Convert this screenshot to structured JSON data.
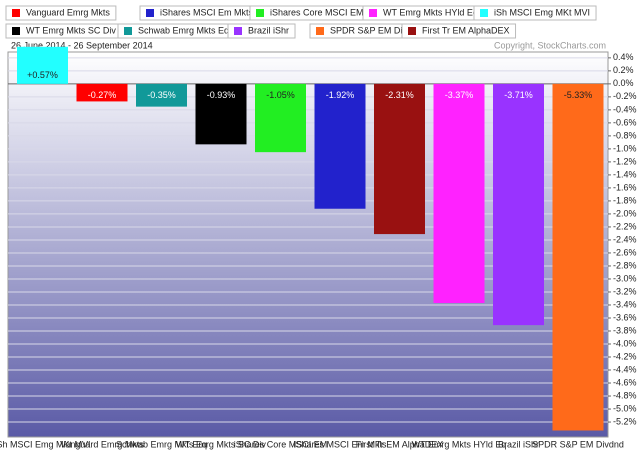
{
  "chart_data": {
    "type": "bar",
    "subtitle": "26 June 2014 - 26 September 2014",
    "annotation": "Copyright, StockCharts.com",
    "legend": [
      {
        "name": "Vanguard Emrg Mkts",
        "color": "#ff0000"
      },
      {
        "name": "iShares MSCI Em Mkts",
        "color": "#2222cc"
      },
      {
        "name": "iShares Core MSCI EM",
        "color": "#22ee22"
      },
      {
        "name": "WT Emrg Mkts HYld Eq",
        "color": "#ff22ff"
      },
      {
        "name": "iSh MSCI Emg MKt MVI",
        "color": "#22ffff"
      },
      {
        "name": "WT Emrg Mkts SC Div",
        "color": "#000000"
      },
      {
        "name": "Schwab Emrg Mkts Eq",
        "color": "#119999"
      },
      {
        "name": "Brazil iShr",
        "color": "#9933ff"
      },
      {
        "name": "SPDR S&P EM Divdnd",
        "color": "#ff6a1a"
      },
      {
        "name": "First Tr EM AlphaDEX",
        "color": "#991111"
      }
    ],
    "categories": [
      "iSh MSCI Emg MKt MVI",
      "Vanguard Emrg Mkts",
      "Schwab Emrg Mkts Eq",
      "WT Emrg Mkts SC Div",
      "iShares Core MSCI EM",
      "iShares MSCI Em Mkts",
      "First Tr EM AlphaDEX",
      "WT Emrg Mkts HYld Eq",
      "Brazil iShr",
      "SPDR S&P EM Divdnd"
    ],
    "values": [
      0.57,
      -0.27,
      -0.35,
      -0.93,
      -1.05,
      -1.92,
      -2.31,
      -3.37,
      -3.71,
      -5.33
    ],
    "value_labels": [
      "+0.57%",
      "-0.27%",
      "-0.35%",
      "-0.93%",
      "-1.05%",
      "-1.92%",
      "-2.31%",
      "-3.37%",
      "-3.71%",
      "-5.33%"
    ],
    "colors": [
      "#22ffff",
      "#ff0000",
      "#119999",
      "#000000",
      "#22ee22",
      "#2222cc",
      "#991111",
      "#ff22ff",
      "#9933ff",
      "#ff6a1a"
    ],
    "ylim": [
      -5.43,
      0.49
    ],
    "yticks": [
      {
        "value": 0.4,
        "label": "0.4%"
      },
      {
        "value": 0.2,
        "label": "0.2%"
      },
      {
        "value": 0,
        "label": "0.0%"
      },
      {
        "value": -0.2,
        "label": "-0.2%"
      },
      {
        "value": -0.4,
        "label": "-0.4%"
      },
      {
        "value": -0.6,
        "label": "-0.6%"
      },
      {
        "value": -0.8,
        "label": "-0.8%"
      },
      {
        "value": -1,
        "label": "-1.0%"
      },
      {
        "value": -1.2,
        "label": "-1.2%"
      },
      {
        "value": -1.4,
        "label": "-1.4%"
      },
      {
        "value": -1.6,
        "label": "-1.6%"
      },
      {
        "value": -1.8,
        "label": "-1.8%"
      },
      {
        "value": -2,
        "label": "-2.0%"
      },
      {
        "value": -2.2,
        "label": "-2.2%"
      },
      {
        "value": -2.4,
        "label": "-2.4%"
      },
      {
        "value": -2.6,
        "label": "-2.6%"
      },
      {
        "value": -2.8,
        "label": "-2.8%"
      },
      {
        "value": -3,
        "label": "-3.0%"
      },
      {
        "value": -3.2,
        "label": "-3.2%"
      },
      {
        "value": -3.4,
        "label": "-3.4%"
      },
      {
        "value": -3.6,
        "label": "-3.6%"
      },
      {
        "value": -3.8,
        "label": "-3.8%"
      },
      {
        "value": -4,
        "label": "-4.0%"
      },
      {
        "value": -4.2,
        "label": "-4.2%"
      },
      {
        "value": -4.4,
        "label": "-4.4%"
      },
      {
        "value": -4.6,
        "label": "-4.6%"
      },
      {
        "value": -4.8,
        "label": "-4.8%"
      },
      {
        "value": -5,
        "label": "-5.0%"
      },
      {
        "value": -5.2,
        "label": "-5.2%"
      }
    ],
    "grid": true
  }
}
